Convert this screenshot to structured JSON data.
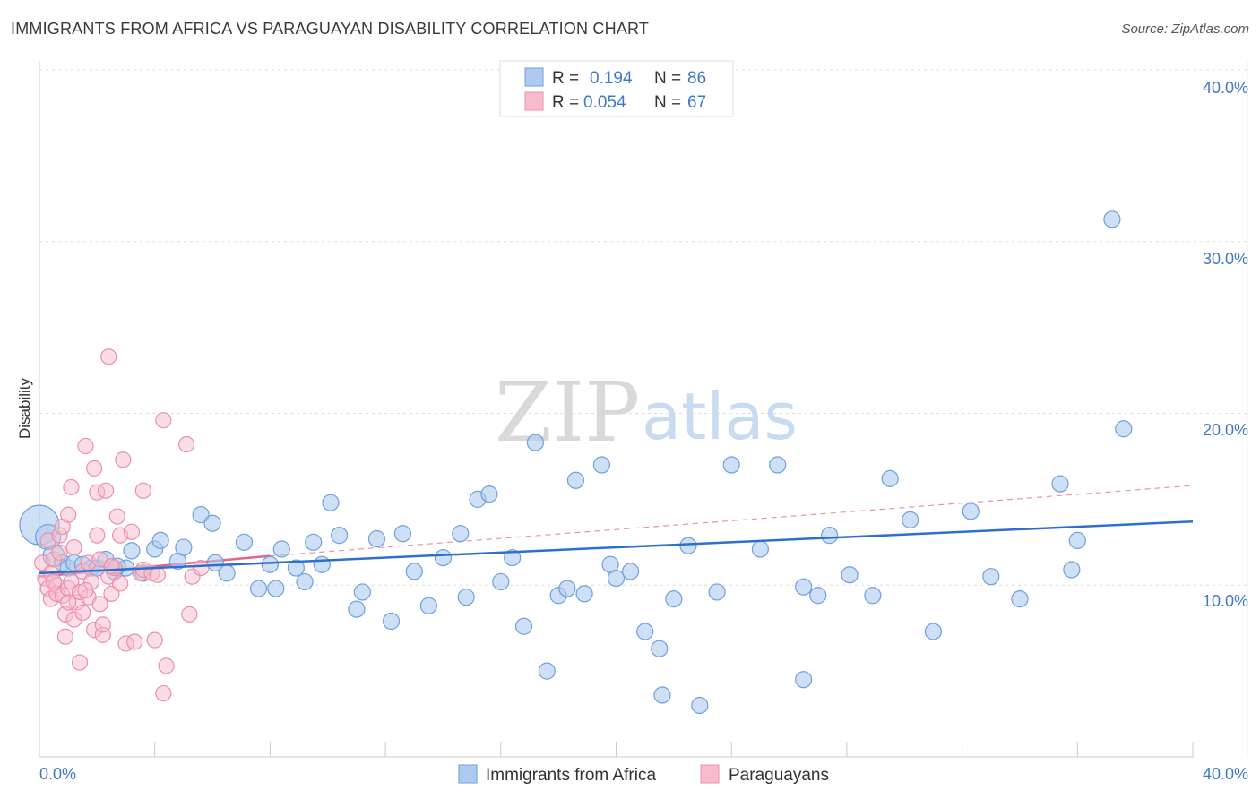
{
  "header": {
    "title": "IMMIGRANTS FROM AFRICA VS PARAGUAYAN DISABILITY CORRELATION CHART",
    "source": "Source: ZipAtlas.com"
  },
  "watermark": {
    "zip": "ZIP",
    "atlas": "atlas"
  },
  "colors": {
    "blue_fill": "#aecbef",
    "blue_stroke": "#6f9fdc",
    "blue_line": "#2f6fcc",
    "pink_fill": "#f6bccd",
    "pink_stroke": "#ec8fab",
    "pink_line": "#e0648c",
    "grid": "#dddddd",
    "tick_text": "#3f78c9"
  },
  "chart_data": {
    "type": "scatter",
    "title": "IMMIGRANTS FROM AFRICA VS PARAGUAYAN DISABILITY CORRELATION CHART",
    "xlabel": "",
    "ylabel": "Disability",
    "xlim": [
      0,
      40
    ],
    "ylim": [
      0,
      40
    ],
    "x_tick_labels": [
      "0.0%",
      "40.0%"
    ],
    "y_ticks": [
      10,
      20,
      30,
      40
    ],
    "y_tick_labels": [
      "10.0%",
      "20.0%",
      "30.0%",
      "40.0%"
    ],
    "grid": true,
    "legend": {
      "placement": "top-center",
      "entries": [
        {
          "r_label": "R =",
          "r_value": "0.194",
          "n_label": "N =",
          "n_value": "86"
        },
        {
          "r_label": "R =",
          "r_value": "0.054",
          "n_label": "N =",
          "n_value": "67"
        }
      ]
    },
    "series": [
      {
        "name": "Immigrants from Africa",
        "color": "blue",
        "trend": {
          "x": [
            0,
            40
          ],
          "y": [
            10.7,
            13.7
          ],
          "style": "solid"
        },
        "points": [
          [
            0.0,
            13.5
          ],
          [
            0.3,
            12.8
          ],
          [
            0.5,
            11.7
          ],
          [
            0.8,
            11.3
          ],
          [
            1.0,
            11.0
          ],
          [
            1.2,
            11.3
          ],
          [
            1.5,
            11.2
          ],
          [
            1.8,
            11.0
          ],
          [
            2.0,
            11.0
          ],
          [
            2.3,
            11.5
          ],
          [
            2.6,
            10.8
          ],
          [
            3.0,
            11.0
          ],
          [
            3.2,
            12.0
          ],
          [
            3.6,
            10.7
          ],
          [
            4.0,
            12.1
          ],
          [
            4.2,
            12.6
          ],
          [
            4.8,
            11.4
          ],
          [
            5.0,
            12.2
          ],
          [
            5.6,
            14.1
          ],
          [
            6.1,
            11.3
          ],
          [
            6.5,
            10.7
          ],
          [
            7.1,
            12.5
          ],
          [
            7.6,
            9.8
          ],
          [
            8.0,
            11.2
          ],
          [
            8.4,
            12.1
          ],
          [
            8.9,
            11.0
          ],
          [
            9.2,
            10.2
          ],
          [
            9.5,
            12.5
          ],
          [
            9.8,
            11.2
          ],
          [
            10.1,
            14.8
          ],
          [
            10.4,
            12.9
          ],
          [
            11.0,
            8.6
          ],
          [
            11.2,
            9.6
          ],
          [
            11.7,
            12.7
          ],
          [
            12.2,
            7.9
          ],
          [
            12.6,
            13.0
          ],
          [
            13.0,
            10.8
          ],
          [
            13.5,
            8.8
          ],
          [
            14.0,
            11.6
          ],
          [
            14.6,
            13.0
          ],
          [
            14.8,
            9.3
          ],
          [
            15.2,
            15.0
          ],
          [
            15.6,
            15.3
          ],
          [
            16.0,
            10.2
          ],
          [
            16.4,
            11.6
          ],
          [
            16.8,
            7.6
          ],
          [
            17.2,
            18.3
          ],
          [
            17.6,
            5.0
          ],
          [
            18.0,
            9.4
          ],
          [
            18.3,
            9.8
          ],
          [
            18.6,
            16.1
          ],
          [
            18.9,
            9.5
          ],
          [
            19.5,
            17.0
          ],
          [
            19.8,
            11.2
          ],
          [
            20.0,
            10.4
          ],
          [
            20.5,
            10.8
          ],
          [
            21.0,
            7.3
          ],
          [
            21.5,
            6.3
          ],
          [
            21.6,
            3.6
          ],
          [
            22.0,
            9.2
          ],
          [
            22.5,
            12.3
          ],
          [
            22.9,
            3.0
          ],
          [
            23.5,
            9.6
          ],
          [
            24.0,
            17.0
          ],
          [
            25.0,
            12.1
          ],
          [
            25.6,
            17.0
          ],
          [
            26.5,
            4.5
          ],
          [
            27.0,
            9.4
          ],
          [
            27.4,
            12.9
          ],
          [
            28.1,
            10.6
          ],
          [
            28.9,
            9.4
          ],
          [
            29.5,
            16.2
          ],
          [
            30.2,
            13.8
          ],
          [
            31.0,
            7.3
          ],
          [
            32.3,
            14.3
          ],
          [
            33.0,
            10.5
          ],
          [
            34.0,
            9.2
          ],
          [
            35.4,
            15.9
          ],
          [
            35.8,
            10.9
          ],
          [
            36.0,
            12.6
          ],
          [
            37.2,
            31.3
          ],
          [
            37.6,
            19.1
          ],
          [
            26.5,
            9.9
          ],
          [
            6.0,
            13.6
          ],
          [
            2.7,
            11.1
          ],
          [
            8.2,
            9.8
          ]
        ]
      },
      {
        "name": "Paraguayans",
        "color": "pink",
        "trend": {
          "x": [
            0,
            8
          ],
          "y": [
            10.5,
            11.7
          ],
          "style": "solid",
          "extended": {
            "x": [
              8,
              40
            ],
            "y": [
              11.7,
              15.8
            ],
            "style": "dashed"
          }
        },
        "points": [
          [
            0.1,
            11.3
          ],
          [
            0.2,
            10.4
          ],
          [
            0.3,
            9.8
          ],
          [
            0.3,
            12.6
          ],
          [
            0.4,
            9.2
          ],
          [
            0.4,
            10.7
          ],
          [
            0.5,
            11.5
          ],
          [
            0.6,
            10.0
          ],
          [
            0.6,
            9.5
          ],
          [
            0.7,
            12.9
          ],
          [
            0.8,
            13.4
          ],
          [
            0.8,
            9.4
          ],
          [
            0.9,
            8.3
          ],
          [
            0.9,
            7.0
          ],
          [
            1.0,
            9.8
          ],
          [
            1.0,
            14.1
          ],
          [
            1.1,
            15.7
          ],
          [
            1.1,
            10.2
          ],
          [
            1.2,
            8.0
          ],
          [
            1.2,
            12.2
          ],
          [
            1.3,
            9.0
          ],
          [
            1.4,
            5.5
          ],
          [
            1.4,
            9.6
          ],
          [
            1.5,
            8.4
          ],
          [
            1.5,
            10.8
          ],
          [
            1.6,
            18.1
          ],
          [
            1.7,
            11.3
          ],
          [
            1.7,
            9.3
          ],
          [
            1.8,
            10.2
          ],
          [
            1.9,
            7.4
          ],
          [
            1.9,
            16.8
          ],
          [
            2.0,
            15.4
          ],
          [
            2.0,
            12.9
          ],
          [
            2.1,
            8.9
          ],
          [
            2.1,
            11.5
          ],
          [
            2.2,
            7.1
          ],
          [
            2.3,
            15.5
          ],
          [
            2.4,
            10.5
          ],
          [
            2.4,
            23.3
          ],
          [
            2.5,
            9.5
          ],
          [
            2.6,
            11.0
          ],
          [
            2.7,
            14.0
          ],
          [
            2.8,
            12.9
          ],
          [
            2.8,
            10.1
          ],
          [
            2.9,
            17.3
          ],
          [
            3.0,
            6.6
          ],
          [
            3.2,
            13.1
          ],
          [
            3.3,
            6.7
          ],
          [
            3.5,
            10.7
          ],
          [
            3.6,
            10.9
          ],
          [
            3.6,
            15.5
          ],
          [
            3.9,
            10.7
          ],
          [
            4.0,
            6.8
          ],
          [
            4.1,
            10.6
          ],
          [
            4.3,
            19.6
          ],
          [
            4.3,
            3.7
          ],
          [
            4.4,
            5.3
          ],
          [
            5.1,
            18.2
          ],
          [
            5.2,
            8.3
          ],
          [
            5.3,
            10.5
          ],
          [
            5.6,
            11.0
          ],
          [
            0.5,
            10.2
          ],
          [
            1.6,
            9.7
          ],
          [
            2.2,
            7.7
          ],
          [
            0.7,
            11.9
          ],
          [
            1.0,
            9.0
          ],
          [
            2.5,
            11.1
          ]
        ]
      }
    ]
  },
  "bottom_legend": {
    "items": [
      {
        "label": "Immigrants from Africa"
      },
      {
        "label": "Paraguayans"
      }
    ]
  }
}
